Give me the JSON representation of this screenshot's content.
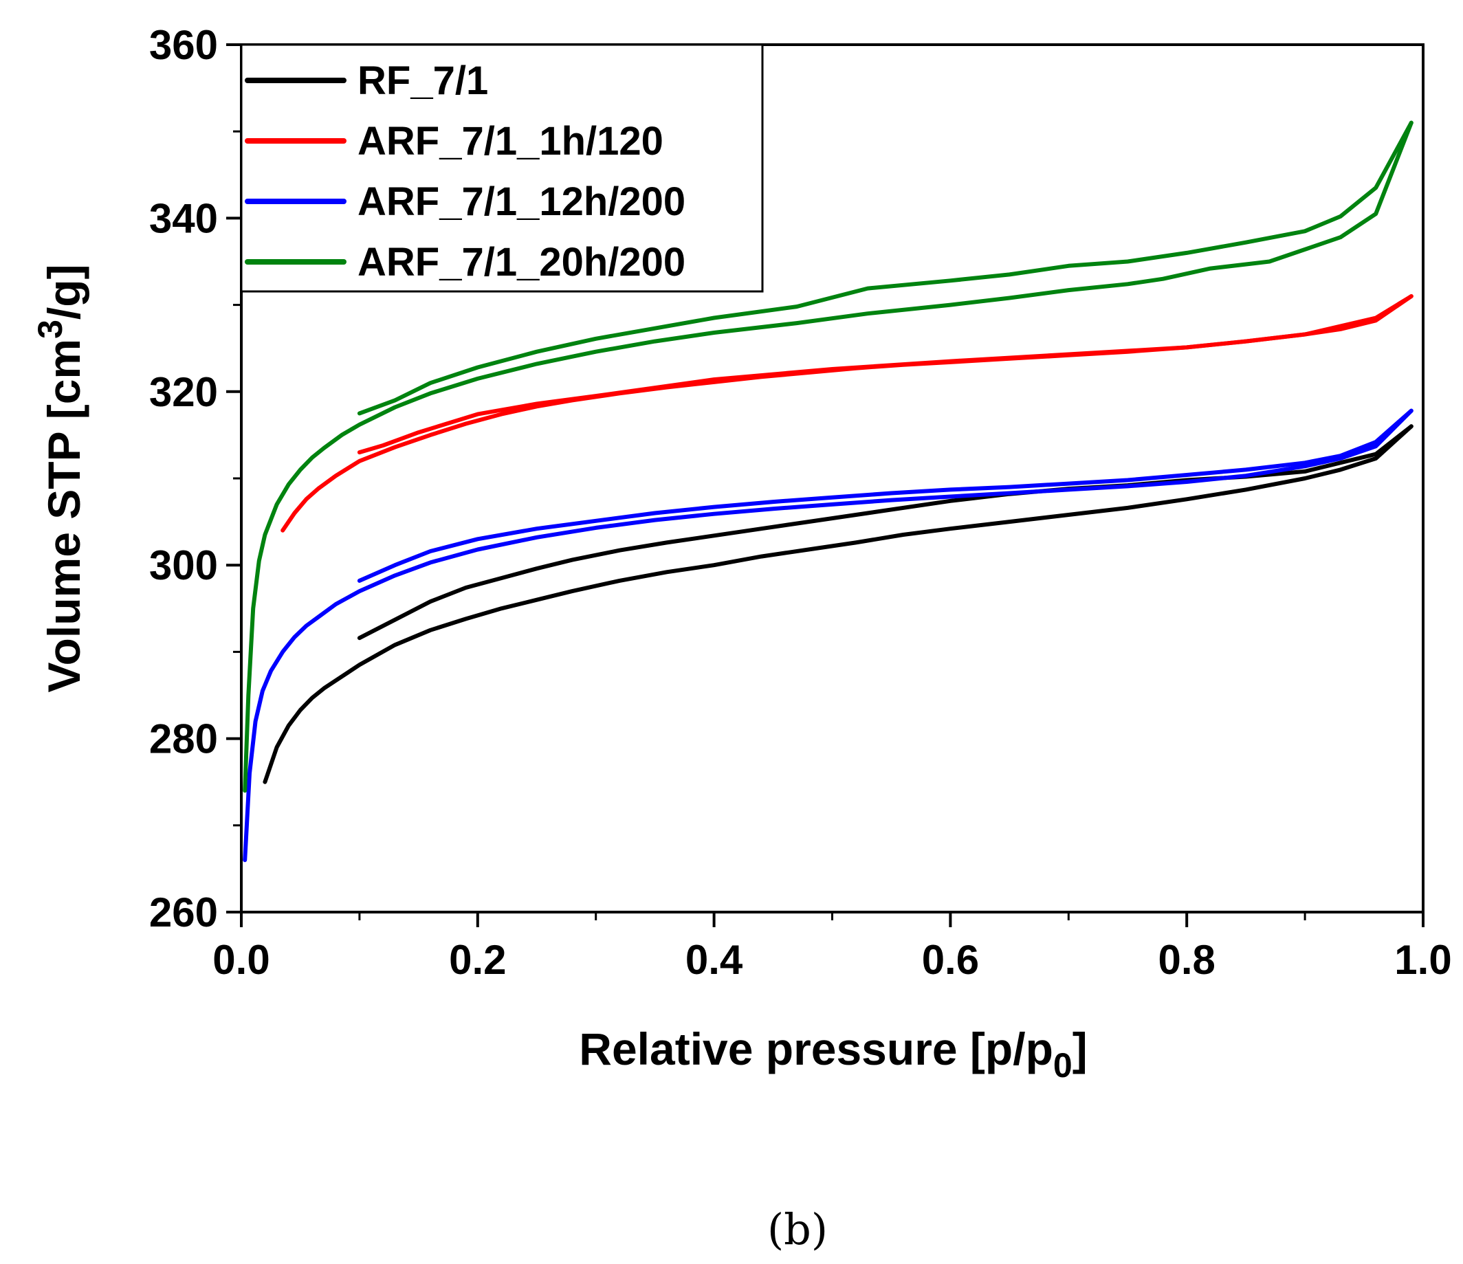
{
  "caption": "(b)",
  "chart_data": {
    "type": "line",
    "title": "",
    "xlabel": "Relative pressure [p/p",
    "xlabel_sub": "0",
    "xlabel_close": "]",
    "ylabel": "Volume STP [cm",
    "ylabel_sup": "3",
    "ylabel_tail": "/g]",
    "xlim": [
      0.0,
      1.0
    ],
    "ylim": [
      260,
      360
    ],
    "x_ticks": [
      0.0,
      0.2,
      0.4,
      0.6,
      0.8,
      1.0
    ],
    "x_tick_labels": [
      "0.0",
      "0.2",
      "0.4",
      "0.6",
      "0.8",
      "1.0"
    ],
    "y_ticks": [
      260,
      280,
      300,
      320,
      340,
      360
    ],
    "y_tick_labels": [
      "260",
      "280",
      "300",
      "320",
      "340",
      "360"
    ],
    "legend_position": "top-left",
    "grid": false,
    "series": [
      {
        "name": "RF_7/1",
        "color": "#000000",
        "adsorption": {
          "x": [
            0.02,
            0.03,
            0.04,
            0.05,
            0.06,
            0.07,
            0.08,
            0.1,
            0.13,
            0.16,
            0.19,
            0.22,
            0.25,
            0.28,
            0.32,
            0.36,
            0.4,
            0.44,
            0.48,
            0.52,
            0.56,
            0.6,
            0.65,
            0.7,
            0.75,
            0.8,
            0.85,
            0.9,
            0.93,
            0.96,
            0.99
          ],
          "y": [
            275,
            279,
            281.5,
            283.3,
            284.7,
            285.8,
            286.7,
            288.5,
            290.8,
            292.5,
            293.8,
            295,
            296,
            297,
            298.2,
            299.2,
            300,
            301,
            301.8,
            302.6,
            303.5,
            304.2,
            305,
            305.8,
            306.6,
            307.6,
            308.7,
            310,
            311,
            312.3,
            316
          ]
        },
        "desorption": {
          "x": [
            0.99,
            0.96,
            0.9,
            0.85,
            0.8,
            0.75,
            0.7,
            0.65,
            0.6,
            0.53,
            0.48,
            0.44,
            0.4,
            0.36,
            0.32,
            0.28,
            0.25,
            0.22,
            0.19,
            0.16,
            0.13,
            0.1
          ],
          "y": [
            316,
            312.8,
            310.8,
            310.2,
            309.8,
            309.2,
            308.8,
            308.2,
            307.4,
            306,
            305,
            304.2,
            303.4,
            302.6,
            301.7,
            300.6,
            299.6,
            298.5,
            297.4,
            295.8,
            293.7,
            291.6
          ]
        }
      },
      {
        "name": "ARF_7/1_1h/120",
        "color": "#ff0000",
        "adsorption": {
          "x": [
            0.035,
            0.045,
            0.055,
            0.065,
            0.08,
            0.1,
            0.13,
            0.16,
            0.19,
            0.22,
            0.25,
            0.28,
            0.32,
            0.36,
            0.4,
            0.44,
            0.48,
            0.52,
            0.56,
            0.6,
            0.65,
            0.7,
            0.75,
            0.8,
            0.85,
            0.9,
            0.93,
            0.96,
            0.99
          ],
          "y": [
            304,
            306,
            307.6,
            308.8,
            310.3,
            312,
            313.6,
            315,
            316.3,
            317.4,
            318.3,
            319,
            319.8,
            320.5,
            321.1,
            321.7,
            322.2,
            322.7,
            323.1,
            323.4,
            323.8,
            324.2,
            324.6,
            325.1,
            325.8,
            326.6,
            327.2,
            328.2,
            331
          ]
        },
        "desorption": {
          "x": [
            0.99,
            0.96,
            0.9,
            0.85,
            0.8,
            0.7,
            0.6,
            0.5,
            0.4,
            0.3,
            0.25,
            0.2,
            0.15,
            0.12,
            0.1
          ],
          "y": [
            331,
            328.5,
            326.6,
            325.8,
            325.1,
            324.3,
            323.5,
            322.6,
            321.4,
            319.5,
            318.6,
            317.4,
            315.3,
            313.8,
            313
          ]
        }
      },
      {
        "name": "ARF_7/1_12h/200",
        "color": "#0000ff",
        "adsorption": {
          "x": [
            0.003,
            0.007,
            0.012,
            0.018,
            0.025,
            0.035,
            0.045,
            0.055,
            0.065,
            0.08,
            0.1,
            0.13,
            0.16,
            0.2,
            0.25,
            0.3,
            0.35,
            0.4,
            0.45,
            0.5,
            0.55,
            0.6,
            0.65,
            0.7,
            0.75,
            0.8,
            0.85,
            0.9,
            0.93,
            0.96,
            0.99
          ],
          "y": [
            266,
            276,
            282,
            285.5,
            287.8,
            290,
            291.7,
            293,
            294,
            295.5,
            297,
            298.8,
            300.3,
            301.8,
            303.2,
            304.3,
            305.2,
            305.9,
            306.5,
            307,
            307.5,
            307.9,
            308.3,
            308.7,
            309.1,
            309.6,
            310.3,
            311.4,
            312.3,
            313.7,
            317.8
          ]
        },
        "desorption": {
          "x": [
            0.99,
            0.96,
            0.93,
            0.9,
            0.85,
            0.8,
            0.75,
            0.7,
            0.65,
            0.6,
            0.55,
            0.5,
            0.45,
            0.4,
            0.35,
            0.3,
            0.25,
            0.2,
            0.16,
            0.13,
            0.1
          ],
          "y": [
            317.8,
            314.2,
            312.6,
            311.8,
            311,
            310.4,
            309.8,
            309.4,
            309,
            308.7,
            308.3,
            307.8,
            307.3,
            306.7,
            306,
            305.1,
            304.2,
            303,
            301.6,
            300,
            298.2
          ]
        }
      },
      {
        "name": "ARF_7/1_20h/200",
        "color": "#00830f",
        "adsorption": {
          "x": [
            0.003,
            0.006,
            0.01,
            0.015,
            0.02,
            0.03,
            0.04,
            0.05,
            0.06,
            0.07,
            0.085,
            0.1,
            0.13,
            0.16,
            0.2,
            0.25,
            0.3,
            0.35,
            0.4,
            0.47,
            0.53,
            0.6,
            0.65,
            0.7,
            0.75,
            0.78,
            0.82,
            0.87,
            0.93,
            0.96,
            0.99
          ],
          "y": [
            274,
            285,
            295,
            300.5,
            303.5,
            307,
            309.3,
            311,
            312.4,
            313.5,
            315,
            316.2,
            318.2,
            319.8,
            321.5,
            323.2,
            324.6,
            325.8,
            326.8,
            327.9,
            329,
            330,
            330.8,
            331.7,
            332.4,
            333,
            334.2,
            335,
            337.8,
            340.5,
            351
          ]
        },
        "desorption": {
          "x": [
            0.99,
            0.96,
            0.93,
            0.9,
            0.85,
            0.8,
            0.75,
            0.7,
            0.65,
            0.6,
            0.53,
            0.47,
            0.4,
            0.35,
            0.3,
            0.25,
            0.2,
            0.16,
            0.13,
            0.1
          ],
          "y": [
            351,
            343.5,
            340.2,
            338.5,
            337.2,
            336,
            335,
            334.5,
            333.5,
            332.8,
            331.9,
            329.8,
            328.5,
            327.3,
            326.1,
            324.6,
            322.8,
            321,
            319,
            317.5
          ]
        }
      }
    ]
  }
}
